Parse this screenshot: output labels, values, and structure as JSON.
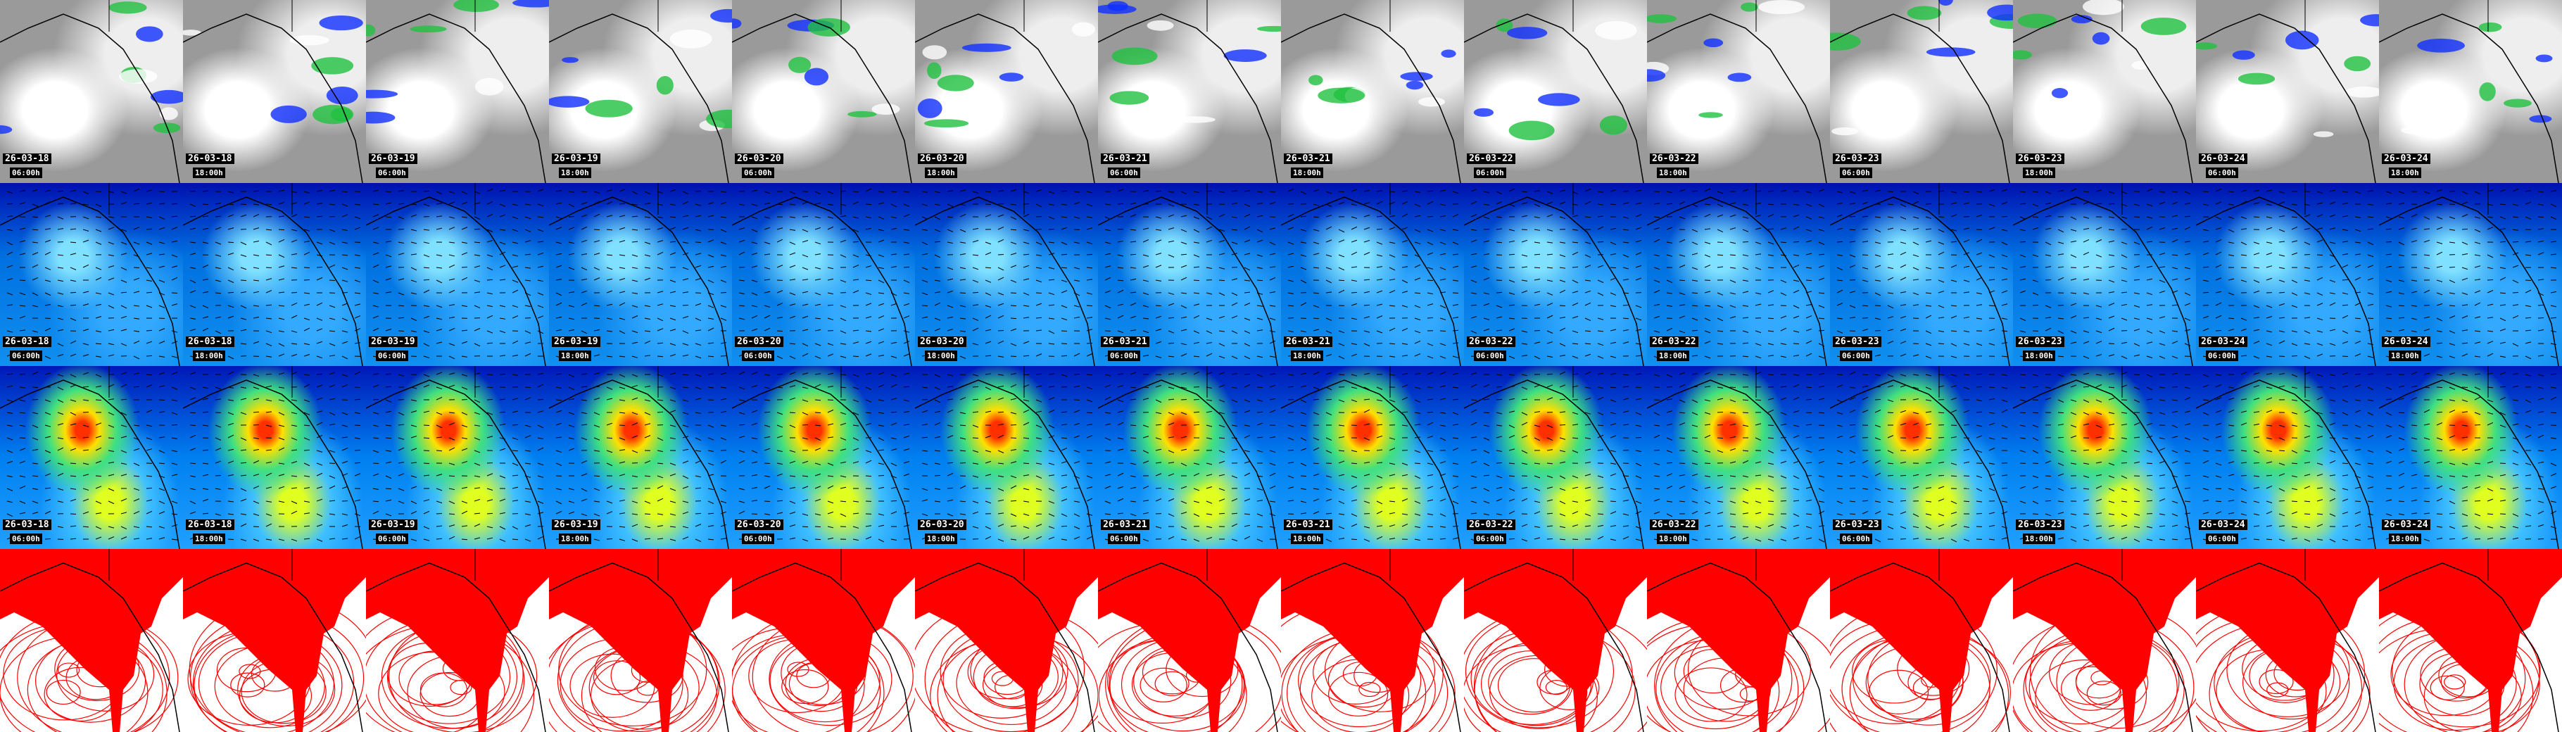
{
  "columns": [
    {
      "date": "26-03-18",
      "time": "06:00h"
    },
    {
      "date": "26-03-18",
      "time": "18:00h"
    },
    {
      "date": "26-03-19",
      "time": "06:00h"
    },
    {
      "date": "26-03-19",
      "time": "18:00h"
    },
    {
      "date": "26-03-20",
      "time": "06:00h"
    },
    {
      "date": "26-03-20",
      "time": "18:00h"
    },
    {
      "date": "26-03-21",
      "time": "06:00h"
    },
    {
      "date": "26-03-21",
      "time": "18:00h"
    },
    {
      "date": "26-03-22",
      "time": "06:00h"
    },
    {
      "date": "26-03-22",
      "time": "18:00h"
    },
    {
      "date": "26-03-23",
      "time": "06:00h"
    },
    {
      "date": "26-03-23",
      "time": "18:00h"
    },
    {
      "date": "26-03-24",
      "time": "06:00h"
    },
    {
      "date": "26-03-24",
      "time": "18:00h"
    }
  ]
}
